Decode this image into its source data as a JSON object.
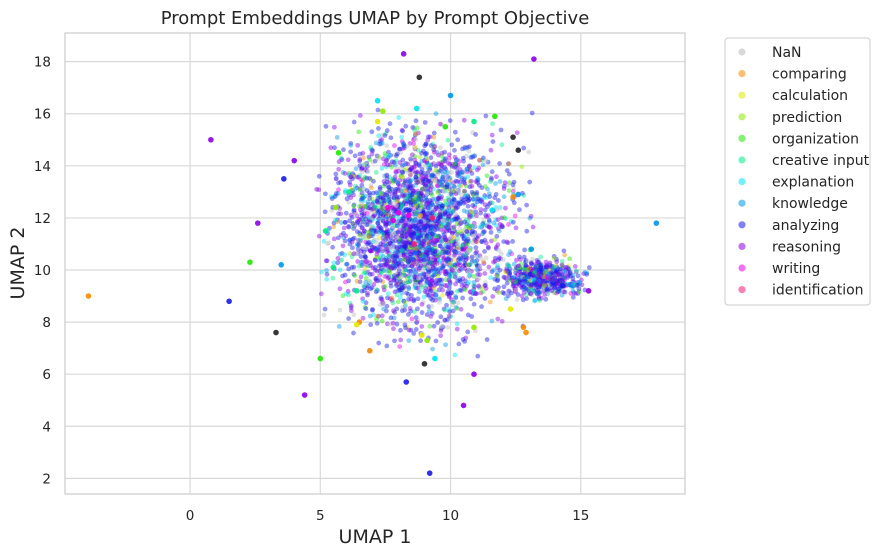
{
  "chart_data": {
    "type": "scatter",
    "title": "Prompt Embeddings UMAP by Prompt Objective",
    "xlabel": "UMAP 1",
    "ylabel": "UMAP 2",
    "xlim": [
      -4.8,
      19.0
    ],
    "ylim": [
      1.4,
      19.1
    ],
    "xticks": [
      0,
      5,
      10,
      15
    ],
    "yticks": [
      2,
      4,
      6,
      8,
      10,
      12,
      14,
      16,
      18
    ],
    "grid": true,
    "legend_position": "outside right, top",
    "cluster": {
      "center": [
        8.8,
        11.6
      ],
      "x_range": [
        4.8,
        15.4
      ],
      "y_range": [
        6.5,
        16.2
      ],
      "dominant_series": [
        "analyzing",
        "reasoning"
      ]
    },
    "series": [
      {
        "name": "NaN",
        "color": "#c8c8c8",
        "points": [
          [
            8.8,
            17.4
          ],
          [
            9.0,
            6.4
          ],
          [
            3.3,
            7.6
          ],
          [
            12.4,
            15.1
          ],
          [
            12.6,
            14.6
          ]
        ]
      },
      {
        "name": "comparing",
        "color": "#f58a00",
        "points": [
          [
            -3.9,
            9.0
          ],
          [
            12.9,
            7.6
          ],
          [
            12.8,
            7.8
          ],
          [
            6.9,
            6.9
          ],
          [
            6.5,
            8.0
          ],
          [
            12.4,
            12.8
          ]
        ]
      },
      {
        "name": "calculation",
        "color": "#e3e800",
        "points": [
          [
            12.3,
            8.5
          ],
          [
            6.4,
            7.9
          ],
          [
            8.9,
            7.5
          ],
          [
            7.2,
            15.7
          ]
        ]
      },
      {
        "name": "prediction",
        "color": "#8eea00",
        "points": [
          [
            7.4,
            16.1
          ],
          [
            9.1,
            7.3
          ],
          [
            10.9,
            7.8
          ],
          [
            5.6,
            12.4
          ]
        ]
      },
      {
        "name": "organization",
        "color": "#1ee800",
        "points": [
          [
            2.3,
            10.3
          ],
          [
            5.0,
            6.6
          ],
          [
            5.7,
            14.5
          ],
          [
            11.7,
            15.9
          ],
          [
            9.8,
            15.5
          ]
        ]
      },
      {
        "name": "creative input",
        "color": "#00e98a",
        "points": [
          [
            5.2,
            11.5
          ],
          [
            6.1,
            13.0
          ],
          [
            10.9,
            15.7
          ],
          [
            6.4,
            9.2
          ],
          [
            5.5,
            10.1
          ]
        ]
      },
      {
        "name": "explanation",
        "color": "#00e3f0",
        "points": [
          [
            7.2,
            16.5
          ],
          [
            8.7,
            16.2
          ],
          [
            11.6,
            12.3
          ],
          [
            9.4,
            6.6
          ]
        ]
      },
      {
        "name": "knowledge",
        "color": "#0096e8",
        "points": [
          [
            17.9,
            11.8
          ],
          [
            10.0,
            16.7
          ],
          [
            3.5,
            10.2
          ],
          [
            13.1,
            10.8
          ],
          [
            12.6,
            12.9
          ]
        ]
      },
      {
        "name": "analyzing",
        "color": "#1a1ae6",
        "points": [
          [
            9.2,
            2.2
          ],
          [
            1.5,
            8.8
          ],
          [
            8.3,
            5.7
          ],
          [
            3.6,
            13.5
          ],
          [
            14.3,
            9.4
          ]
        ]
      },
      {
        "name": "reasoning",
        "color": "#8a00e6",
        "points": [
          [
            0.8,
            15.0
          ],
          [
            8.2,
            18.3
          ],
          [
            13.2,
            18.1
          ],
          [
            4.4,
            5.2
          ],
          [
            10.5,
            4.8
          ],
          [
            10.9,
            6.0
          ],
          [
            15.3,
            9.2
          ],
          [
            4.0,
            14.2
          ],
          [
            2.6,
            11.8
          ]
        ]
      },
      {
        "name": "writing",
        "color": "#e400e6",
        "points": [
          [
            8.0,
            12.2
          ],
          [
            7.8,
            11.9
          ],
          [
            8.4,
            12.1
          ],
          [
            7.6,
            12.4
          ]
        ]
      },
      {
        "name": "identification",
        "color": "#f01a78",
        "points": [
          [
            9.3,
            12.0
          ],
          [
            8.6,
            11.0
          ]
        ]
      }
    ]
  }
}
